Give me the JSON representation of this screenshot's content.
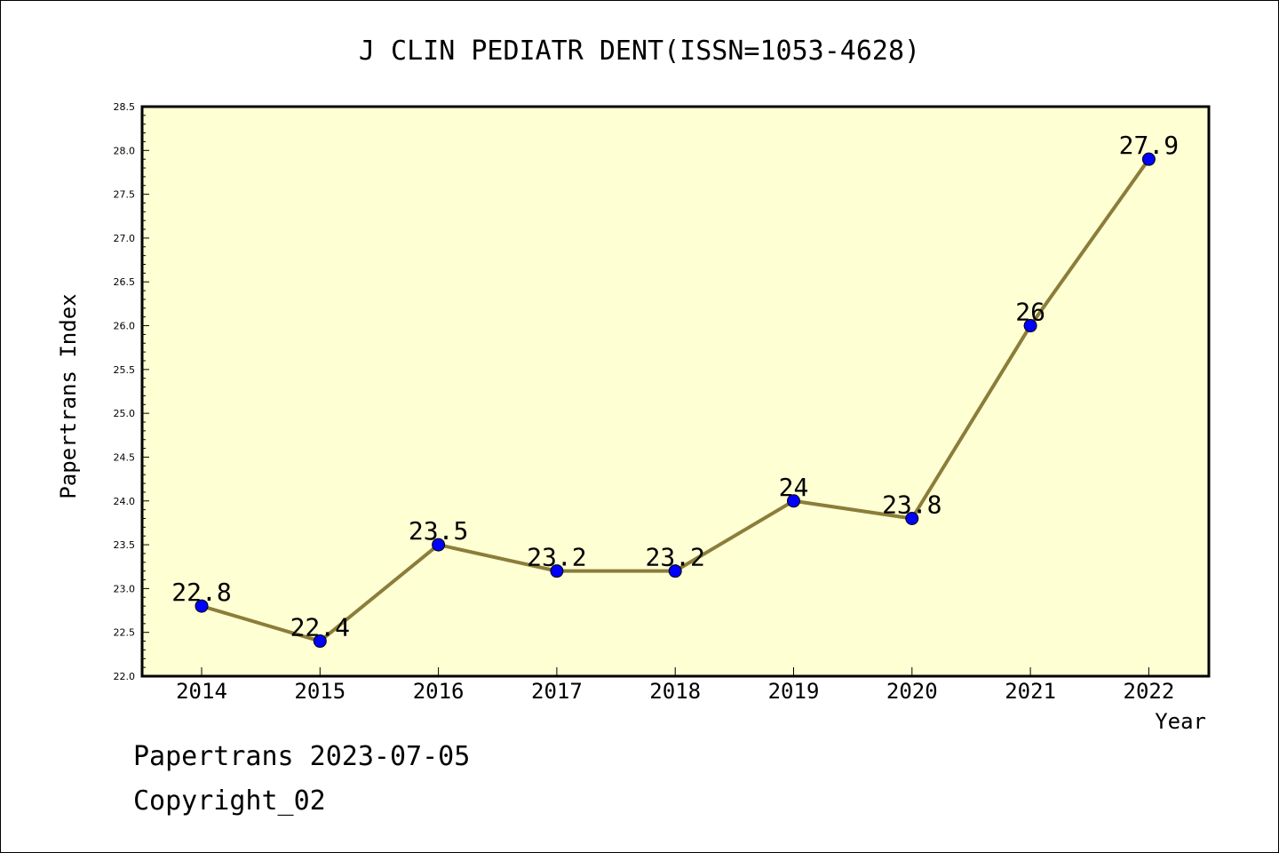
{
  "colors": {
    "plot_background": "#ffffd4",
    "line": "#8b7d3a",
    "marker": "#0000ff",
    "axis": "#000000"
  },
  "footer": {
    "date_text": "Papertrans 2023-07-05",
    "copyright_text": "Copyright_02"
  },
  "chart_data": {
    "type": "line",
    "title": "J CLIN PEDIATR DENT(ISSN=1053-4628)",
    "xlabel": "Year",
    "ylabel": "Papertrans Index",
    "categories": [
      "2014",
      "2015",
      "2016",
      "2017",
      "2018",
      "2019",
      "2020",
      "2021",
      "2022"
    ],
    "series": [
      {
        "values": [
          22.8,
          22.4,
          23.5,
          23.2,
          23.2,
          24.0,
          23.8,
          26.0,
          27.9
        ],
        "data_labels": [
          "22.8",
          "22.4",
          "23.5",
          "23.2",
          "23.2",
          "24",
          "23.8",
          "26",
          "27.9"
        ]
      }
    ],
    "ylim": [
      22.0,
      28.5
    ],
    "yticks": [
      "22.0",
      "22.5",
      "23.0",
      "23.5",
      "24.0",
      "24.5",
      "25.0",
      "25.5",
      "26.0",
      "26.5",
      "27.0",
      "27.5",
      "28.0",
      "28.5"
    ],
    "grid": false,
    "legend": "none"
  }
}
